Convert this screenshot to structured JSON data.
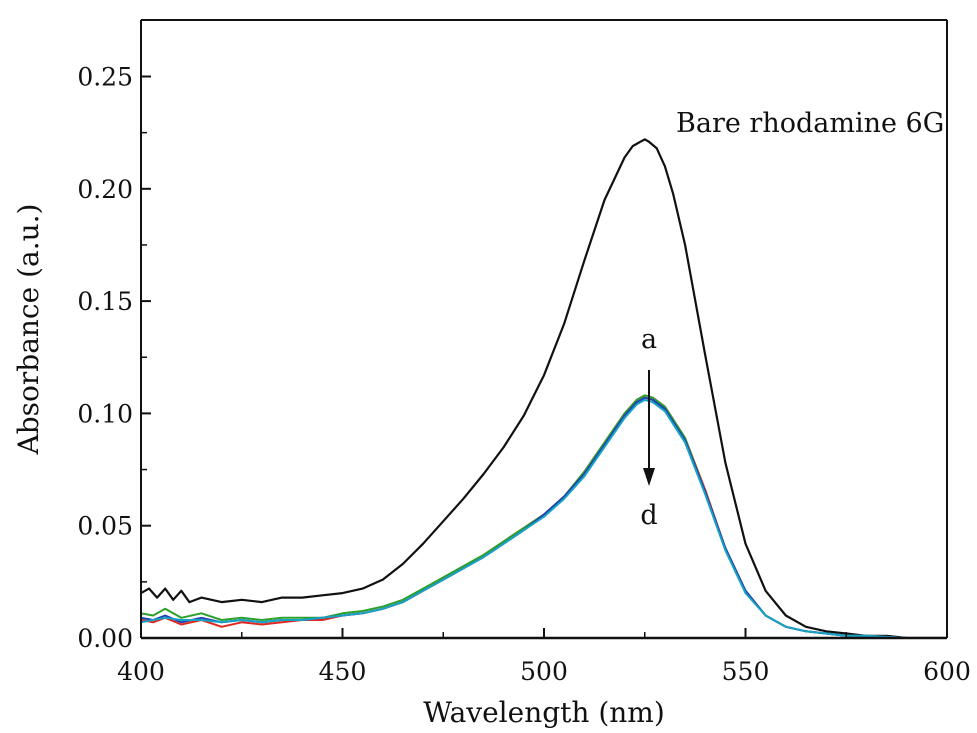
{
  "chart_data": {
    "type": "line",
    "xlabel": "Wavelength (nm)",
    "ylabel": "Absorbance (a.u.)",
    "xlim": [
      400,
      600
    ],
    "ylim": [
      0,
      0.27
    ],
    "x_ticks": [
      400,
      450,
      500,
      550,
      600
    ],
    "y_ticks": [
      0.0,
      0.05,
      0.1,
      0.15,
      0.2,
      0.25
    ],
    "x_tick_labels": [
      "400",
      "450",
      "500",
      "550",
      "600"
    ],
    "y_tick_labels": [
      "0.00",
      "0.05",
      "0.10",
      "0.15",
      "0.20",
      "0.25"
    ],
    "annotations": {
      "bare_label": "Bare rhodamine 6G",
      "arrow_start": "a",
      "arrow_end": "d"
    },
    "series": [
      {
        "color": "#111111",
        "x": [
          400,
          402,
          404,
          406,
          408,
          410,
          412,
          415,
          420,
          425,
          430,
          435,
          440,
          445,
          450,
          455,
          460,
          465,
          470,
          475,
          480,
          485,
          490,
          495,
          500,
          505,
          510,
          515,
          520,
          522,
          524,
          525,
          526,
          528,
          530,
          532,
          535,
          540,
          545,
          550,
          555,
          560,
          565,
          570,
          575,
          580,
          585,
          590,
          595,
          600
        ],
        "y": [
          0.02,
          0.022,
          0.018,
          0.022,
          0.017,
          0.021,
          0.016,
          0.018,
          0.016,
          0.017,
          0.016,
          0.018,
          0.018,
          0.019,
          0.02,
          0.022,
          0.026,
          0.033,
          0.042,
          0.052,
          0.062,
          0.073,
          0.085,
          0.099,
          0.117,
          0.14,
          0.168,
          0.195,
          0.214,
          0.219,
          0.221,
          0.222,
          0.221,
          0.218,
          0.21,
          0.198,
          0.175,
          0.126,
          0.078,
          0.042,
          0.021,
          0.01,
          0.005,
          0.003,
          0.002,
          0.001,
          0.001,
          0.0,
          0.0,
          0.0
        ]
      },
      {
        "color": "#e0281e",
        "x": [
          400,
          403,
          406,
          410,
          415,
          420,
          425,
          430,
          435,
          440,
          445,
          450,
          455,
          460,
          465,
          470,
          475,
          480,
          485,
          490,
          495,
          500,
          505,
          510,
          515,
          520,
          523,
          525,
          527,
          530,
          535,
          540,
          545,
          550,
          555,
          560,
          565,
          570,
          575,
          580,
          590,
          600
        ],
        "y": [
          0.008,
          0.007,
          0.009,
          0.006,
          0.008,
          0.005,
          0.007,
          0.006,
          0.007,
          0.008,
          0.008,
          0.01,
          0.011,
          0.013,
          0.016,
          0.021,
          0.026,
          0.031,
          0.037,
          0.043,
          0.049,
          0.055,
          0.063,
          0.074,
          0.087,
          0.1,
          0.106,
          0.108,
          0.107,
          0.103,
          0.089,
          0.066,
          0.04,
          0.021,
          0.01,
          0.005,
          0.003,
          0.002,
          0.001,
          0.001,
          0.0,
          0.0
        ]
      },
      {
        "color": "#2ca02c",
        "x": [
          400,
          403,
          406,
          410,
          415,
          420,
          425,
          430,
          435,
          440,
          445,
          450,
          455,
          460,
          465,
          470,
          475,
          480,
          485,
          490,
          495,
          500,
          505,
          510,
          515,
          520,
          523,
          525,
          527,
          530,
          535,
          540,
          545,
          550,
          555,
          560,
          565,
          570,
          575,
          580,
          590,
          600
        ],
        "y": [
          0.011,
          0.01,
          0.013,
          0.009,
          0.011,
          0.008,
          0.009,
          0.008,
          0.009,
          0.009,
          0.009,
          0.011,
          0.012,
          0.014,
          0.017,
          0.022,
          0.027,
          0.032,
          0.037,
          0.043,
          0.049,
          0.055,
          0.063,
          0.074,
          0.087,
          0.1,
          0.106,
          0.108,
          0.107,
          0.103,
          0.089,
          0.065,
          0.04,
          0.021,
          0.01,
          0.005,
          0.003,
          0.002,
          0.001,
          0.001,
          0.0,
          0.0
        ]
      },
      {
        "color": "#1f3fb4",
        "x": [
          400,
          403,
          406,
          410,
          415,
          420,
          425,
          430,
          435,
          440,
          445,
          450,
          455,
          460,
          465,
          470,
          475,
          480,
          485,
          490,
          495,
          500,
          505,
          510,
          515,
          520,
          523,
          525,
          527,
          530,
          535,
          540,
          545,
          550,
          555,
          560,
          565,
          570,
          575,
          580,
          590,
          600
        ],
        "y": [
          0.009,
          0.008,
          0.01,
          0.007,
          0.009,
          0.007,
          0.008,
          0.007,
          0.008,
          0.008,
          0.009,
          0.01,
          0.011,
          0.013,
          0.016,
          0.021,
          0.026,
          0.031,
          0.036,
          0.042,
          0.048,
          0.055,
          0.063,
          0.073,
          0.086,
          0.099,
          0.105,
          0.107,
          0.106,
          0.102,
          0.088,
          0.065,
          0.04,
          0.021,
          0.01,
          0.005,
          0.003,
          0.002,
          0.001,
          0.001,
          0.0,
          0.0
        ]
      },
      {
        "color": "#17a2c4",
        "x": [
          400,
          403,
          406,
          410,
          415,
          420,
          425,
          430,
          435,
          440,
          445,
          450,
          455,
          460,
          465,
          470,
          475,
          480,
          485,
          490,
          495,
          500,
          505,
          510,
          515,
          520,
          523,
          525,
          527,
          530,
          535,
          540,
          545,
          550,
          555,
          560,
          565,
          570,
          575,
          580,
          590,
          600
        ],
        "y": [
          0.007,
          0.008,
          0.009,
          0.008,
          0.008,
          0.007,
          0.008,
          0.007,
          0.008,
          0.008,
          0.009,
          0.01,
          0.011,
          0.013,
          0.016,
          0.021,
          0.026,
          0.031,
          0.036,
          0.042,
          0.048,
          0.054,
          0.062,
          0.072,
          0.085,
          0.098,
          0.104,
          0.106,
          0.105,
          0.101,
          0.087,
          0.064,
          0.039,
          0.02,
          0.01,
          0.005,
          0.003,
          0.002,
          0.001,
          0.001,
          0.0,
          0.0
        ]
      }
    ]
  }
}
